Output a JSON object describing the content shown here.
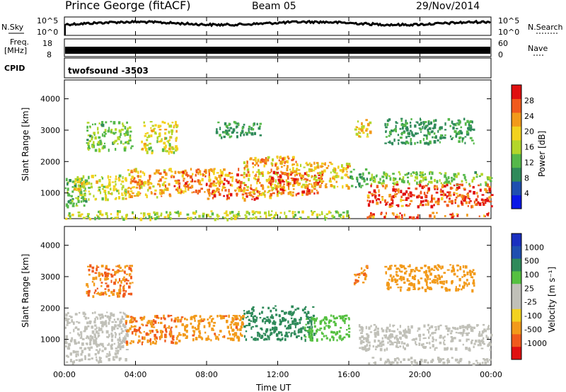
{
  "header": {
    "station": "Prince George (fitACF)",
    "beam": "Beam 05",
    "date": "29/Nov/2014"
  },
  "top_panels": {
    "nsky_label": "N.Sky",
    "nsky_ticks": [
      "10^5",
      "10^0"
    ],
    "nsearch_label": "N.Search",
    "nsearch_ticks": [
      "10^5",
      "10^0"
    ],
    "freq_label_1": "Freq.",
    "freq_label_2": "[MHz]",
    "freq_ticks": [
      "18",
      "8"
    ],
    "nave_label": "Nave",
    "nave_ticks": [
      "60",
      "0"
    ],
    "cpid_label": "CPID",
    "cpid_value": "twofsound -3503"
  },
  "colors": {
    "power": [
      "#0a18e6",
      "#1f4fb0",
      "#2f8a5a",
      "#55b84a",
      "#b3d62a",
      "#f2d21f",
      "#f29a1a",
      "#f05a1c",
      "#e01010"
    ],
    "velocity": [
      "#e01010",
      "#f05a1c",
      "#f29a1a",
      "#f2d21f",
      "#c0c0b8",
      "#c0c0b8",
      "#55c040",
      "#2f8a5a",
      "#1f4fb0",
      "#1a2fc0"
    ]
  },
  "chart_data": [
    {
      "type": "heatmap",
      "title": "Power",
      "xlabel": "Time UT",
      "ylabel": "Slant Range [km]",
      "x_ticks": [
        "00:00",
        "04:00",
        "08:00",
        "12:00",
        "16:00",
        "20:00",
        "00:00"
      ],
      "xlim": [
        0,
        24
      ],
      "ylim": [
        180,
        4600
      ],
      "y_ticks": [
        1000,
        2000,
        3000,
        4000
      ],
      "colorbar_label": "Power [dB]",
      "colorbar_ticks": [
        4,
        8,
        12,
        16,
        20,
        24,
        28
      ],
      "colorbar_range": [
        0,
        32
      ],
      "regions": [
        {
          "t0": 0.0,
          "t1": 1.3,
          "r0": 600,
          "r1": 1500,
          "value": 12
        },
        {
          "t0": 0.5,
          "t1": 3.5,
          "r0": 800,
          "r1": 1600,
          "value": 18
        },
        {
          "t0": 1.2,
          "t1": 3.8,
          "r0": 2400,
          "r1": 3300,
          "value": 14
        },
        {
          "t0": 3.5,
          "t1": 6.0,
          "r0": 900,
          "r1": 1800,
          "value": 22
        },
        {
          "t0": 4.3,
          "t1": 6.3,
          "r0": 2300,
          "r1": 3300,
          "value": 18
        },
        {
          "t0": 6.0,
          "t1": 10.0,
          "r0": 1000,
          "r1": 1800,
          "value": 24
        },
        {
          "t0": 8.0,
          "t1": 11.0,
          "r0": 800,
          "r1": 1200,
          "value": 26
        },
        {
          "t0": 10.0,
          "t1": 13.0,
          "r0": 900,
          "r1": 2200,
          "value": 22
        },
        {
          "t0": 11.5,
          "t1": 14.5,
          "r0": 1000,
          "r1": 1700,
          "value": 28
        },
        {
          "t0": 13.0,
          "t1": 16.0,
          "r0": 1200,
          "r1": 2000,
          "value": 20
        },
        {
          "t0": 16.0,
          "t1": 17.0,
          "r0": 1200,
          "r1": 1800,
          "value": 10
        },
        {
          "t0": 16.3,
          "t1": 17.2,
          "r0": 2800,
          "r1": 3400,
          "value": 20
        },
        {
          "t0": 17.0,
          "t1": 24.0,
          "r0": 1300,
          "r1": 1700,
          "value": 14
        },
        {
          "t0": 17.0,
          "t1": 24.0,
          "r0": 600,
          "r1": 1300,
          "value": 28
        },
        {
          "t0": 17.0,
          "t1": 24.0,
          "r0": 250,
          "r1": 400,
          "value": 26
        },
        {
          "t0": 0.0,
          "t1": 16.0,
          "r0": 200,
          "r1": 450,
          "value": 16
        },
        {
          "t0": 8.5,
          "t1": 11.0,
          "r0": 2800,
          "r1": 3300,
          "value": 10
        },
        {
          "t0": 18.0,
          "t1": 23.0,
          "r0": 2600,
          "r1": 3400,
          "value": 10
        }
      ]
    },
    {
      "type": "heatmap",
      "title": "Velocity",
      "xlabel": "Time UT",
      "ylabel": "Slant Range [km]",
      "x_ticks": [
        "00:00",
        "04:00",
        "08:00",
        "12:00",
        "16:00",
        "20:00",
        "00:00"
      ],
      "xlim": [
        0,
        24
      ],
      "ylim": [
        180,
        4600
      ],
      "y_ticks": [
        1000,
        2000,
        3000,
        4000
      ],
      "colorbar_label": "Velocity [m s⁻¹]",
      "colorbar_ticks": [
        "1000",
        "500",
        "100",
        "25",
        "-25",
        "-100",
        "-500",
        "-1000"
      ],
      "regions": [
        {
          "t0": 0.0,
          "t1": 3.5,
          "r0": 300,
          "r1": 1900,
          "value": 0
        },
        {
          "t0": 1.2,
          "t1": 3.8,
          "r0": 2400,
          "r1": 3400,
          "value": -300
        },
        {
          "t0": 3.4,
          "t1": 6.5,
          "r0": 900,
          "r1": 1800,
          "value": -300
        },
        {
          "t0": 6.5,
          "t1": 10.0,
          "r0": 1000,
          "r1": 1800,
          "value": -250
        },
        {
          "t0": 10.0,
          "t1": 14.0,
          "r0": 1000,
          "r1": 2100,
          "value": 400
        },
        {
          "t0": 13.5,
          "t1": 16.0,
          "r0": 1000,
          "r1": 1800,
          "value": 60
        },
        {
          "t0": 16.2,
          "t1": 17.0,
          "r0": 2800,
          "r1": 3400,
          "value": -300
        },
        {
          "t0": 16.5,
          "t1": 24.0,
          "r0": 700,
          "r1": 1500,
          "value": 0
        },
        {
          "t0": 17.0,
          "t1": 24.0,
          "r0": 250,
          "r1": 450,
          "value": 0
        },
        {
          "t0": 18.0,
          "t1": 23.0,
          "r0": 2600,
          "r1": 3400,
          "value": -200
        }
      ]
    }
  ]
}
